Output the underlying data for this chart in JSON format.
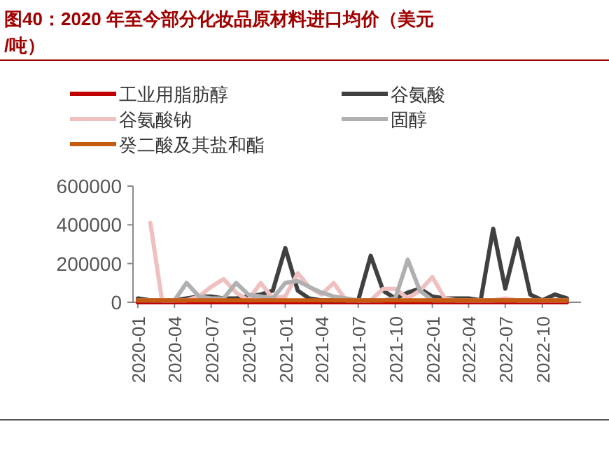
{
  "chart_data": {
    "type": "line",
    "title": "图40：2020 年至今部分化妆品原材料进口均价（美元/吨）",
    "x": [
      "2020-01",
      "2020-02",
      "2020-03",
      "2020-04",
      "2020-05",
      "2020-06",
      "2020-07",
      "2020-08",
      "2020-09",
      "2020-10",
      "2020-11",
      "2020-12",
      "2021-01",
      "2021-02",
      "2021-03",
      "2021-04",
      "2021-05",
      "2021-06",
      "2021-07",
      "2021-08",
      "2021-09",
      "2021-10",
      "2021-11",
      "2021-12",
      "2022-01",
      "2022-02",
      "2022-03",
      "2022-04",
      "2022-05",
      "2022-06",
      "2022-07",
      "2022-08",
      "2022-09",
      "2022-10",
      "2022-11",
      "2022-12"
    ],
    "xlim": [
      "2019-12-20",
      "2023-01-05"
    ],
    "xticks": [
      {
        "value": "2020-01",
        "label": "2020-01"
      },
      {
        "value": "2020-04",
        "label": "2020-04"
      },
      {
        "value": "2020-07",
        "label": "2020-07"
      },
      {
        "value": "2020-10",
        "label": "2020-10"
      },
      {
        "value": "2021-01",
        "label": "2021-01"
      },
      {
        "value": "2021-04",
        "label": "2021-04"
      },
      {
        "value": "2021-07",
        "label": "2021-07"
      },
      {
        "value": "2021-10",
        "label": "2021-10"
      },
      {
        "value": "2022-01",
        "label": "2022-01"
      },
      {
        "value": "2022-04",
        "label": "2022-04"
      },
      {
        "value": "2022-07",
        "label": "2022-07"
      },
      {
        "value": "2022-10",
        "label": "2022-10"
      }
    ],
    "ylim": [
      0,
      600000
    ],
    "yticks": [
      0,
      200000,
      400000,
      600000
    ],
    "grid": false,
    "legend": "top left",
    "series": [
      {
        "name": "工业用脂肪醇",
        "color": "#c00000",
        "values": [
          0,
          0,
          0,
          0,
          0,
          0,
          0,
          0,
          0,
          0,
          0,
          0,
          0,
          0,
          0,
          0,
          0,
          0,
          0,
          0,
          0,
          0,
          0,
          0,
          0,
          0,
          0,
          0,
          0,
          0,
          0,
          0,
          0,
          0,
          0,
          0
        ]
      },
      {
        "name": "谷氨酸",
        "color": "#404040",
        "values": [
          20000,
          10000,
          10000,
          10000,
          20000,
          30000,
          30000,
          20000,
          20000,
          30000,
          40000,
          60000,
          280000,
          60000,
          20000,
          10000,
          10000,
          10000,
          10000,
          240000,
          60000,
          20000,
          50000,
          70000,
          30000,
          20000,
          20000,
          20000,
          10000,
          380000,
          70000,
          330000,
          40000,
          10000,
          40000,
          20000
        ]
      },
      {
        "name": "谷氨酸钠",
        "color": "#f0c0c0",
        "values": [
          null,
          410000,
          10000,
          10000,
          10000,
          30000,
          80000,
          120000,
          50000,
          10000,
          100000,
          20000,
          30000,
          150000,
          80000,
          40000,
          100000,
          10000,
          10000,
          10000,
          70000,
          70000,
          20000,
          60000,
          130000,
          20000,
          10000,
          10000,
          10000,
          10000,
          20000,
          10000,
          10000,
          10000,
          10000,
          10000
        ]
      },
      {
        "name": "固醇",
        "color": "#b0b0b0",
        "values": [
          10000,
          10000,
          10000,
          10000,
          100000,
          30000,
          20000,
          20000,
          100000,
          40000,
          30000,
          20000,
          100000,
          110000,
          80000,
          50000,
          30000,
          20000,
          10000,
          10000,
          10000,
          20000,
          220000,
          60000,
          10000,
          10000,
          10000,
          10000,
          10000,
          10000,
          10000,
          10000,
          10000,
          10000,
          10000,
          10000
        ]
      },
      {
        "name": "癸二酸及其盐和酯",
        "color": "#c55a11",
        "values": [
          10000,
          10000,
          10000,
          10000,
          10000,
          10000,
          10000,
          10000,
          10000,
          10000,
          10000,
          10000,
          10000,
          10000,
          10000,
          10000,
          10000,
          10000,
          10000,
          10000,
          10000,
          10000,
          10000,
          10000,
          10000,
          10000,
          10000,
          10000,
          10000,
          10000,
          10000,
          10000,
          10000,
          10000,
          10000,
          10000
        ]
      }
    ]
  }
}
